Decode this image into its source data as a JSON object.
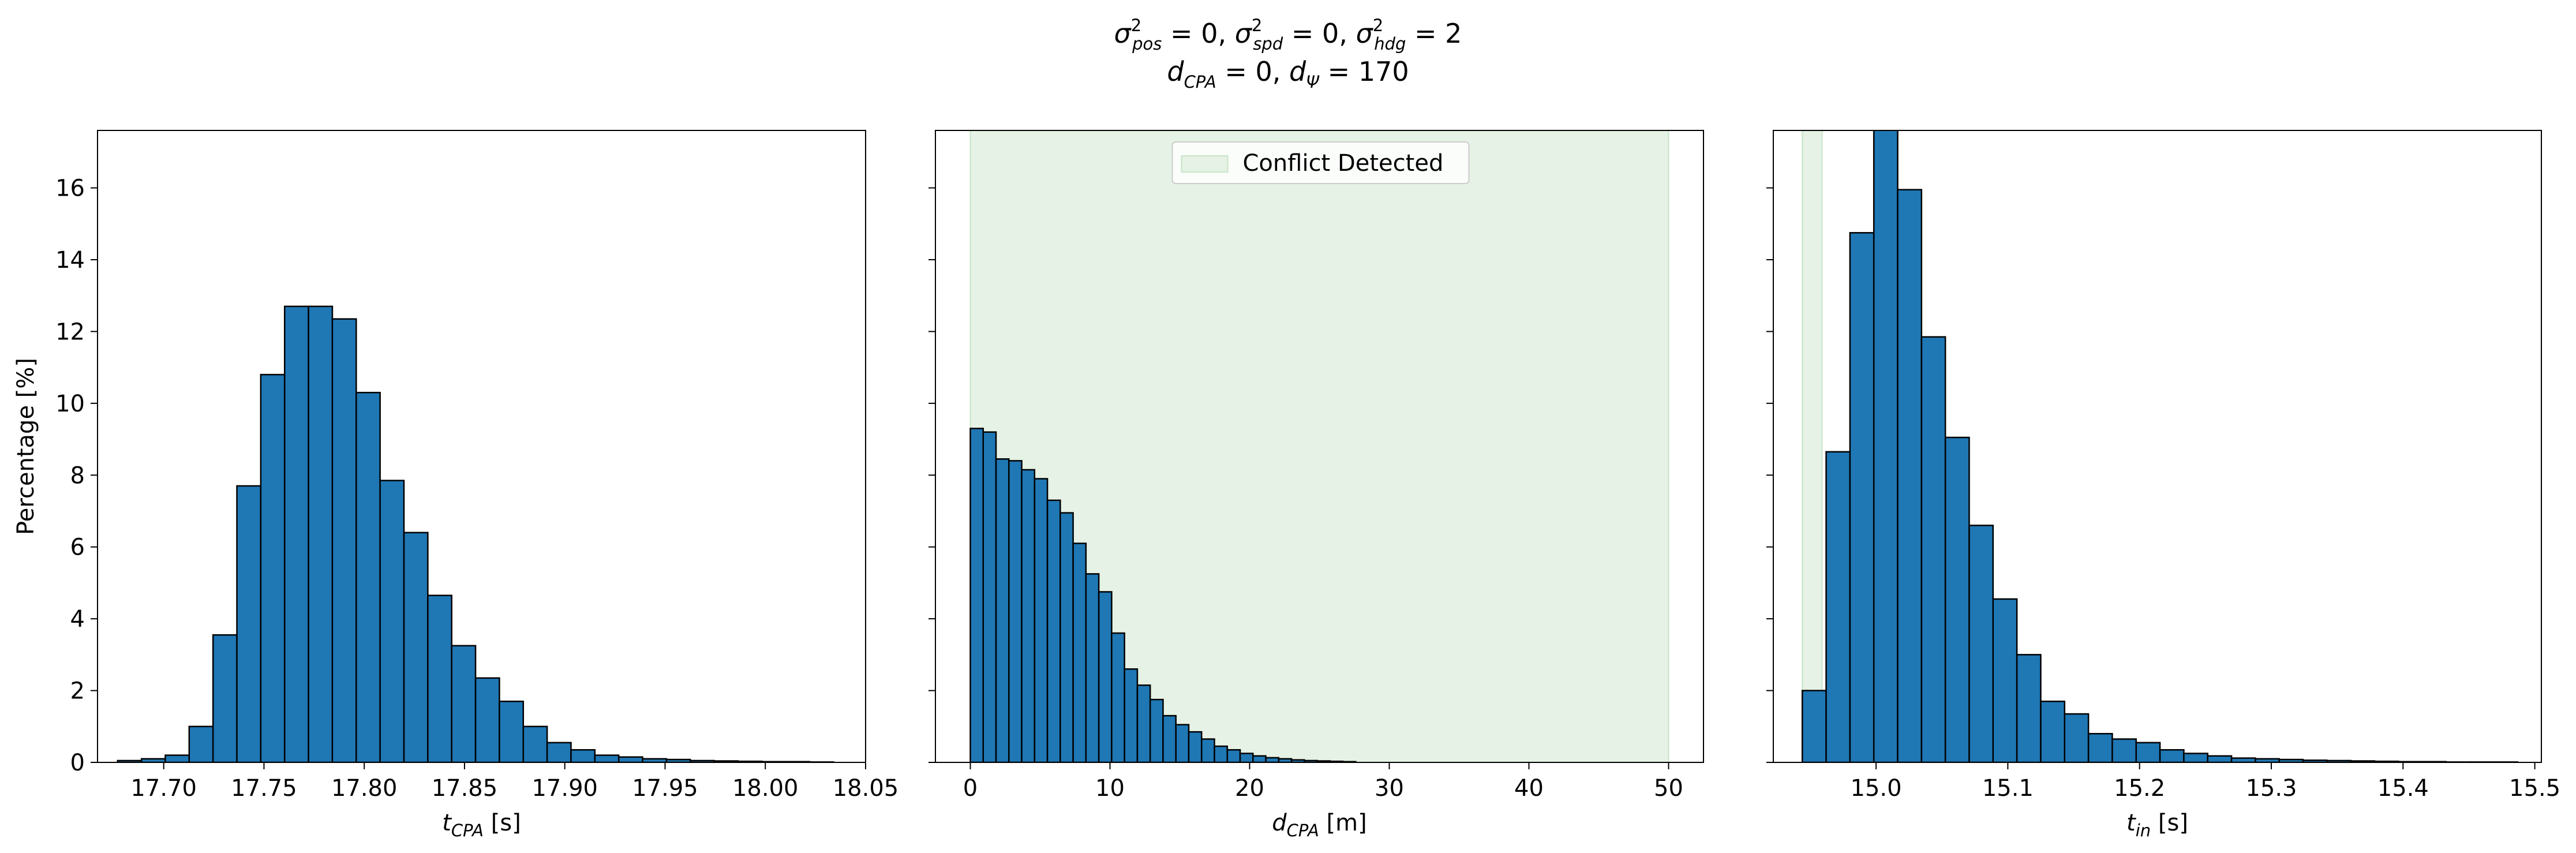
{
  "figure": {
    "title_line1": {
      "sym1": "σ",
      "sup1": "2",
      "sub1": "pos",
      "rest1": " = 0, ",
      "sym2": "σ",
      "sup2": "2",
      "sub2": "spd",
      "rest2": " = 0, ",
      "sym3": "σ",
      "sup3": "2",
      "sub3": "hdg",
      "rest3": " = 2"
    },
    "title_line2": {
      "sym1": "d",
      "sub1": "CPA",
      "rest1": " = 0, ",
      "sym2": "d",
      "sub2": "Ψ",
      "rest2": " = 170"
    }
  },
  "colors": {
    "bar_fill": "#1f77b4",
    "bar_edge": "#000000",
    "conflict_fill": "#e5f2e5",
    "conflict_edge": "#c8e3c8"
  },
  "chart_data": [
    {
      "type": "bar",
      "xlabel": {
        "sym": "t",
        "sub": "CPA",
        "unit": " [s]"
      },
      "ylabel": "Percentage [%]",
      "xlim": [
        17.667,
        18.05
      ],
      "ylim": [
        0,
        17.6
      ],
      "xticks": [
        17.7,
        17.75,
        17.8,
        17.85,
        17.9,
        17.95,
        18.0,
        18.05
      ],
      "xtick_labels": [
        "17.70",
        "17.75",
        "17.80",
        "17.85",
        "17.90",
        "17.95",
        "18.00",
        "18.05"
      ],
      "yticks": [
        0,
        2,
        4,
        6,
        8,
        10,
        12,
        14,
        16
      ],
      "ytick_labels": [
        "0",
        "2",
        "4",
        "6",
        "8",
        "10",
        "12",
        "14",
        "16"
      ],
      "bin_start": 17.677,
      "bin_width": 0.0119,
      "values": [
        0.05,
        0.1,
        0.2,
        1.0,
        3.55,
        7.7,
        10.8,
        12.7,
        12.7,
        12.35,
        10.3,
        7.85,
        6.4,
        4.65,
        3.25,
        2.35,
        1.7,
        1.0,
        0.55,
        0.35,
        0.2,
        0.15,
        0.1,
        0.08,
        0.05,
        0.04,
        0.03,
        0.02,
        0.02,
        0.01
      ]
    },
    {
      "type": "bar",
      "xlabel": {
        "sym": "d",
        "sub": "CPA",
        "unit": " [m]"
      },
      "xlim": [
        -2.5,
        52.5
      ],
      "ylim": [
        0,
        17.6
      ],
      "xticks": [
        0,
        10,
        20,
        30,
        40,
        50
      ],
      "xtick_labels": [
        "0",
        "10",
        "20",
        "30",
        "40",
        "50"
      ],
      "yticks": [
        0,
        2,
        4,
        6,
        8,
        10,
        12,
        14,
        16
      ],
      "shaded_region": {
        "x0": 0,
        "x1": 50,
        "label": "Conflict Detected"
      },
      "legend": {
        "label": "Conflict Detected",
        "position": "upper center"
      },
      "bin_start": 0,
      "bin_width": 0.92,
      "values": [
        9.3,
        9.2,
        8.45,
        8.4,
        8.15,
        7.9,
        7.3,
        6.95,
        6.1,
        5.25,
        4.75,
        3.6,
        2.6,
        2.15,
        1.75,
        1.3,
        1.05,
        0.85,
        0.65,
        0.45,
        0.35,
        0.25,
        0.18,
        0.13,
        0.1,
        0.07,
        0.05,
        0.04,
        0.03,
        0.02
      ]
    },
    {
      "type": "bar",
      "xlabel": {
        "sym": "t",
        "sub": "in",
        "unit": " [s]"
      },
      "xlim": [
        14.922,
        15.505
      ],
      "ylim": [
        0,
        17.6
      ],
      "xticks": [
        15.0,
        15.1,
        15.2,
        15.3,
        15.4,
        15.5
      ],
      "xtick_labels": [
        "15.0",
        "15.1",
        "15.2",
        "15.3",
        "15.4",
        "15.5"
      ],
      "yticks": [
        0,
        2,
        4,
        6,
        8,
        10,
        12,
        14,
        16
      ],
      "shaded_region": {
        "x0": 14.944,
        "x1": 14.959
      },
      "bin_start": 14.944,
      "bin_width": 0.0181,
      "values": [
        2.0,
        8.65,
        14.75,
        17.65,
        15.95,
        11.85,
        9.05,
        6.6,
        4.55,
        3.0,
        1.7,
        1.35,
        0.8,
        0.65,
        0.55,
        0.35,
        0.25,
        0.18,
        0.12,
        0.1,
        0.08,
        0.06,
        0.05,
        0.04,
        0.03,
        0.02,
        0.02,
        0.01,
        0.01,
        0.01
      ]
    }
  ]
}
